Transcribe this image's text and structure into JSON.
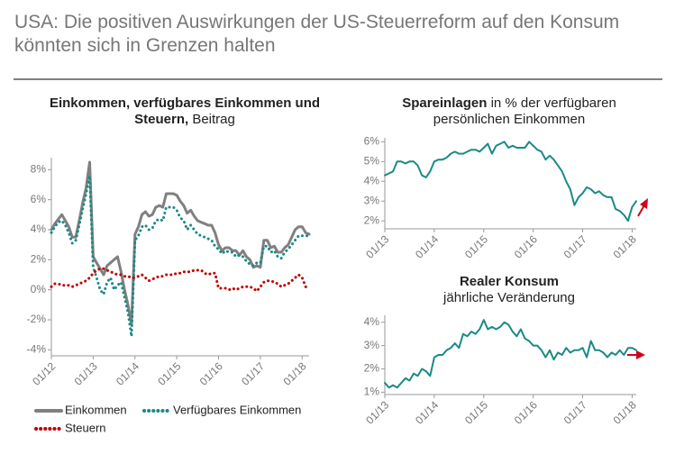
{
  "title": "USA: Die positiven Auswirkungen der US-Steuerreform auf den Konsum könnten sich in Grenzen halten",
  "chart_data": [
    {
      "type": "line",
      "title": "Einkommen, verfügbares Einkommen und Steuern,",
      "subtitle": "Beitrag",
      "x": [
        "01/12",
        "02/12",
        "03/12",
        "04/12",
        "05/12",
        "06/12",
        "07/12",
        "08/12",
        "09/12",
        "10/12",
        "11/12",
        "12/12",
        "01/13",
        "02/13",
        "03/13",
        "04/13",
        "05/13",
        "06/13",
        "07/13",
        "08/13",
        "09/13",
        "10/13",
        "11/13",
        "12/13",
        "01/14",
        "02/14",
        "03/14",
        "04/14",
        "05/14",
        "06/14",
        "07/14",
        "08/14",
        "09/14",
        "10/14",
        "11/14",
        "12/14",
        "01/15",
        "02/15",
        "03/15",
        "04/15",
        "05/15",
        "06/15",
        "07/15",
        "08/15",
        "09/15",
        "10/15",
        "11/15",
        "12/15",
        "01/16",
        "02/16",
        "03/16",
        "04/16",
        "05/16",
        "06/16",
        "07/16",
        "08/16",
        "09/16",
        "10/16",
        "11/16",
        "12/16",
        "01/17",
        "02/17",
        "03/17",
        "04/17",
        "05/17",
        "06/17",
        "07/17",
        "08/17",
        "09/17",
        "10/17",
        "11/17",
        "12/17",
        "01/18",
        "02/18",
        "03/18"
      ],
      "xticks": [
        "01/12",
        "01/13",
        "01/14",
        "01/15",
        "01/16",
        "01/17",
        "01/18"
      ],
      "ylim": [
        -4.4,
        8.8
      ],
      "yticks": [
        {
          "value": -4,
          "label": "-4%"
        },
        {
          "value": -2,
          "label": "-2%"
        },
        {
          "value": 0,
          "label": "0%"
        },
        {
          "value": 2,
          "label": "2%"
        },
        {
          "value": 4,
          "label": "4%"
        },
        {
          "value": 6,
          "label": "6%"
        },
        {
          "value": 8,
          "label": "8%"
        }
      ],
      "series": [
        {
          "name": "Einkommen",
          "color": "#808080",
          "style": "solid",
          "values": [
            4.0,
            4.4,
            4.7,
            5.0,
            4.6,
            4.2,
            3.5,
            3.5,
            4.6,
            5.8,
            6.8,
            8.5,
            2.2,
            1.8,
            1.4,
            1.0,
            1.6,
            1.8,
            2.0,
            2.2,
            1.2,
            0.0,
            -1.0,
            -2.3,
            3.7,
            4.2,
            5.0,
            5.2,
            4.9,
            5.0,
            5.5,
            5.6,
            5.5,
            6.4,
            6.4,
            6.4,
            6.3,
            5.9,
            5.6,
            5.1,
            5.3,
            4.9,
            4.6,
            4.5,
            4.4,
            4.3,
            4.3,
            3.8,
            3.0,
            2.6,
            2.8,
            2.8,
            2.6,
            2.6,
            2.3,
            2.6,
            2.2,
            2.0,
            1.5,
            1.6,
            1.5,
            3.3,
            3.3,
            2.8,
            2.9,
            2.5,
            2.5,
            2.8,
            3.0,
            3.5,
            4.0,
            4.2,
            4.2,
            3.8,
            3.7
          ]
        },
        {
          "name": "Verfügbares Einkommen",
          "color": "#1a8a86",
          "style": "dotted",
          "values": [
            3.8,
            4.2,
            4.5,
            4.6,
            4.3,
            3.8,
            3.1,
            3.3,
            4.3,
            5.4,
            6.4,
            7.6,
            1.5,
            0.8,
            0.0,
            -0.3,
            0.5,
            0.8,
            0.0,
            0.3,
            0.5,
            -0.5,
            -1.5,
            -3.1,
            3.3,
            3.6,
            4.2,
            4.3,
            4.0,
            4.1,
            4.6,
            4.7,
            4.6,
            5.5,
            5.5,
            5.5,
            5.3,
            4.8,
            4.6,
            4.0,
            4.3,
            4.0,
            3.7,
            3.6,
            3.5,
            3.4,
            3.3,
            2.9,
            2.7,
            2.4,
            2.6,
            2.5,
            2.5,
            2.2,
            2.3,
            2.2,
            1.9,
            1.7,
            1.6,
            1.8,
            1.8,
            2.9,
            2.9,
            2.5,
            2.6,
            2.2,
            2.1,
            2.5,
            2.7,
            3.0,
            3.3,
            3.6,
            3.6,
            3.6,
            3.6
          ]
        },
        {
          "name": "Steuern",
          "color": "#c00000",
          "style": "dotted",
          "values": [
            0.2,
            0.4,
            0.4,
            0.3,
            0.3,
            0.3,
            0.2,
            0.3,
            0.4,
            0.5,
            0.6,
            0.8,
            1.1,
            1.3,
            1.4,
            1.4,
            1.3,
            1.2,
            1.1,
            1.0,
            1.0,
            0.9,
            0.9,
            0.8,
            0.8,
            0.9,
            1.0,
            0.8,
            0.6,
            0.7,
            0.8,
            0.9,
            0.9,
            1.0,
            1.0,
            1.0,
            1.1,
            1.1,
            1.2,
            1.2,
            1.2,
            1.3,
            1.3,
            1.3,
            1.1,
            1.0,
            1.1,
            1.1,
            0.1,
            0.1,
            0.1,
            0.0,
            0.1,
            0.0,
            0.1,
            0.2,
            0.2,
            0.2,
            0.1,
            -0.1,
            0.2,
            0.5,
            0.6,
            0.6,
            0.5,
            0.4,
            0.2,
            0.3,
            0.4,
            0.6,
            0.8,
            1.0,
            0.8,
            0.2,
            0.1
          ]
        }
      ]
    },
    {
      "type": "line",
      "title": "Spareinlagen",
      "subtitle": "in % der verfügbaren persönlichen Einkommen",
      "x": [
        "01/13",
        "02/13",
        "03/13",
        "04/13",
        "05/13",
        "06/13",
        "07/13",
        "08/13",
        "09/13",
        "10/13",
        "11/13",
        "12/13",
        "01/14",
        "02/14",
        "03/14",
        "04/14",
        "05/14",
        "06/14",
        "07/14",
        "08/14",
        "09/14",
        "10/14",
        "11/14",
        "12/14",
        "01/15",
        "02/15",
        "03/15",
        "04/15",
        "05/15",
        "06/15",
        "07/15",
        "08/15",
        "09/15",
        "10/15",
        "11/15",
        "12/15",
        "01/16",
        "02/16",
        "03/16",
        "04/16",
        "05/16",
        "06/16",
        "07/16",
        "08/16",
        "09/16",
        "10/16",
        "11/16",
        "12/16",
        "01/17",
        "02/17",
        "03/17",
        "04/17",
        "05/17",
        "06/17",
        "07/17",
        "08/17",
        "09/17",
        "10/17",
        "11/17",
        "12/17",
        "01/18",
        "02/18"
      ],
      "xticks": [
        "01/13",
        "01/14",
        "01/15",
        "01/16",
        "01/17",
        "01/18"
      ],
      "ylim": [
        1.6,
        6.2
      ],
      "yticks": [
        {
          "value": 2,
          "label": "2%"
        },
        {
          "value": 3,
          "label": "3%"
        },
        {
          "value": 4,
          "label": "4%"
        },
        {
          "value": 5,
          "label": "5%"
        },
        {
          "value": 6,
          "label": "6%"
        }
      ],
      "color": "#1a8a86",
      "values": [
        4.3,
        4.4,
        4.5,
        5.0,
        5.0,
        4.9,
        5.0,
        5.0,
        4.8,
        4.3,
        4.2,
        4.5,
        5.0,
        5.1,
        5.1,
        5.2,
        5.4,
        5.5,
        5.4,
        5.4,
        5.5,
        5.6,
        5.6,
        5.5,
        5.7,
        5.9,
        5.4,
        5.8,
        5.9,
        6.0,
        5.7,
        5.8,
        5.7,
        5.7,
        5.7,
        6.0,
        5.8,
        5.6,
        5.5,
        5.1,
        5.3,
        5.1,
        4.8,
        4.5,
        4.0,
        3.6,
        2.8,
        3.2,
        3.4,
        3.7,
        3.6,
        3.4,
        3.5,
        3.3,
        3.2,
        3.2,
        2.6,
        2.5,
        2.3,
        2.0,
        2.7,
        3.0
      ]
    },
    {
      "type": "line",
      "title": "Realer Konsum",
      "subtitle": "jährliche Veränderung",
      "x": [
        "01/13",
        "02/13",
        "03/13",
        "04/13",
        "05/13",
        "06/13",
        "07/13",
        "08/13",
        "09/13",
        "10/13",
        "11/13",
        "12/13",
        "01/14",
        "02/14",
        "03/14",
        "04/14",
        "05/14",
        "06/14",
        "07/14",
        "08/14",
        "09/14",
        "10/14",
        "11/14",
        "12/14",
        "01/15",
        "02/15",
        "03/15",
        "04/15",
        "05/15",
        "06/15",
        "07/15",
        "08/15",
        "09/15",
        "10/15",
        "11/15",
        "12/15",
        "01/16",
        "02/16",
        "03/16",
        "04/16",
        "05/16",
        "06/16",
        "07/16",
        "08/16",
        "09/16",
        "10/16",
        "11/16",
        "12/16",
        "01/17",
        "02/17",
        "03/17",
        "04/17",
        "05/17",
        "06/17",
        "07/17",
        "08/17",
        "09/17",
        "10/17",
        "11/17",
        "12/17",
        "01/18",
        "02/18"
      ],
      "xticks": [
        "01/13",
        "01/14",
        "01/15",
        "01/16",
        "01/17",
        "01/18"
      ],
      "ylim": [
        0.9,
        4.3
      ],
      "yticks": [
        {
          "value": 1,
          "label": "1%"
        },
        {
          "value": 2,
          "label": "2%"
        },
        {
          "value": 3,
          "label": "3%"
        },
        {
          "value": 4,
          "label": "4%"
        }
      ],
      "color": "#1a8a86",
      "values": [
        1.4,
        1.2,
        1.3,
        1.2,
        1.4,
        1.6,
        1.5,
        1.8,
        1.7,
        2.0,
        1.9,
        1.7,
        2.5,
        2.6,
        2.6,
        2.8,
        2.9,
        3.1,
        2.9,
        3.5,
        3.4,
        3.6,
        3.5,
        3.7,
        4.1,
        3.7,
        3.8,
        3.7,
        3.8,
        4.0,
        3.9,
        3.6,
        3.4,
        3.7,
        3.3,
        3.2,
        3.0,
        3.0,
        2.8,
        2.5,
        2.8,
        2.4,
        2.7,
        2.6,
        2.9,
        2.7,
        2.8,
        2.8,
        2.9,
        2.5,
        3.2,
        2.8,
        2.8,
        2.7,
        2.5,
        2.7,
        2.6,
        2.8,
        2.6,
        2.9,
        2.9,
        2.8
      ]
    }
  ]
}
